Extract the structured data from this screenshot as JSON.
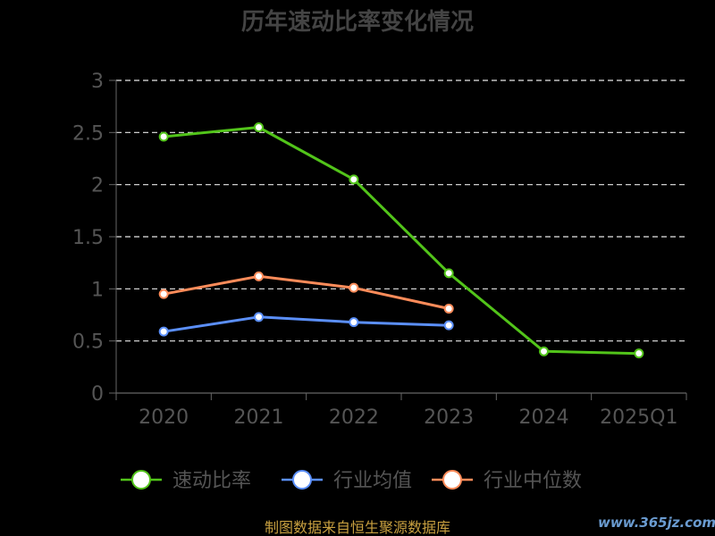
{
  "chart_data": {
    "type": "line",
    "title": "历年速动比率变化情况",
    "categories": [
      "2020",
      "2021",
      "2022",
      "2023",
      "2024",
      "2025Q1"
    ],
    "ylim": [
      0,
      3
    ],
    "yticks": [
      "0",
      "0.5",
      "1",
      "1.5",
      "2",
      "2.5",
      "3"
    ],
    "ytick_values": [
      0,
      0.5,
      1,
      1.5,
      2,
      2.5,
      3
    ],
    "grid": true,
    "legend_position": "bottom",
    "series": [
      {
        "name": "速动比率",
        "color": "#52c41a",
        "values": [
          2.46,
          2.55,
          2.05,
          1.15,
          0.4,
          0.38
        ]
      },
      {
        "name": "行业均值",
        "color": "#5b8ff9",
        "values": [
          0.59,
          0.73,
          0.68,
          0.65,
          null,
          null
        ]
      },
      {
        "name": "行业中位数",
        "color": "#ff8c5a",
        "values": [
          0.95,
          1.12,
          1.01,
          0.81,
          null,
          null
        ]
      }
    ]
  },
  "footer": {
    "source": "制图数据来自恒生聚源数据库",
    "watermark": "www.365jz.com"
  }
}
